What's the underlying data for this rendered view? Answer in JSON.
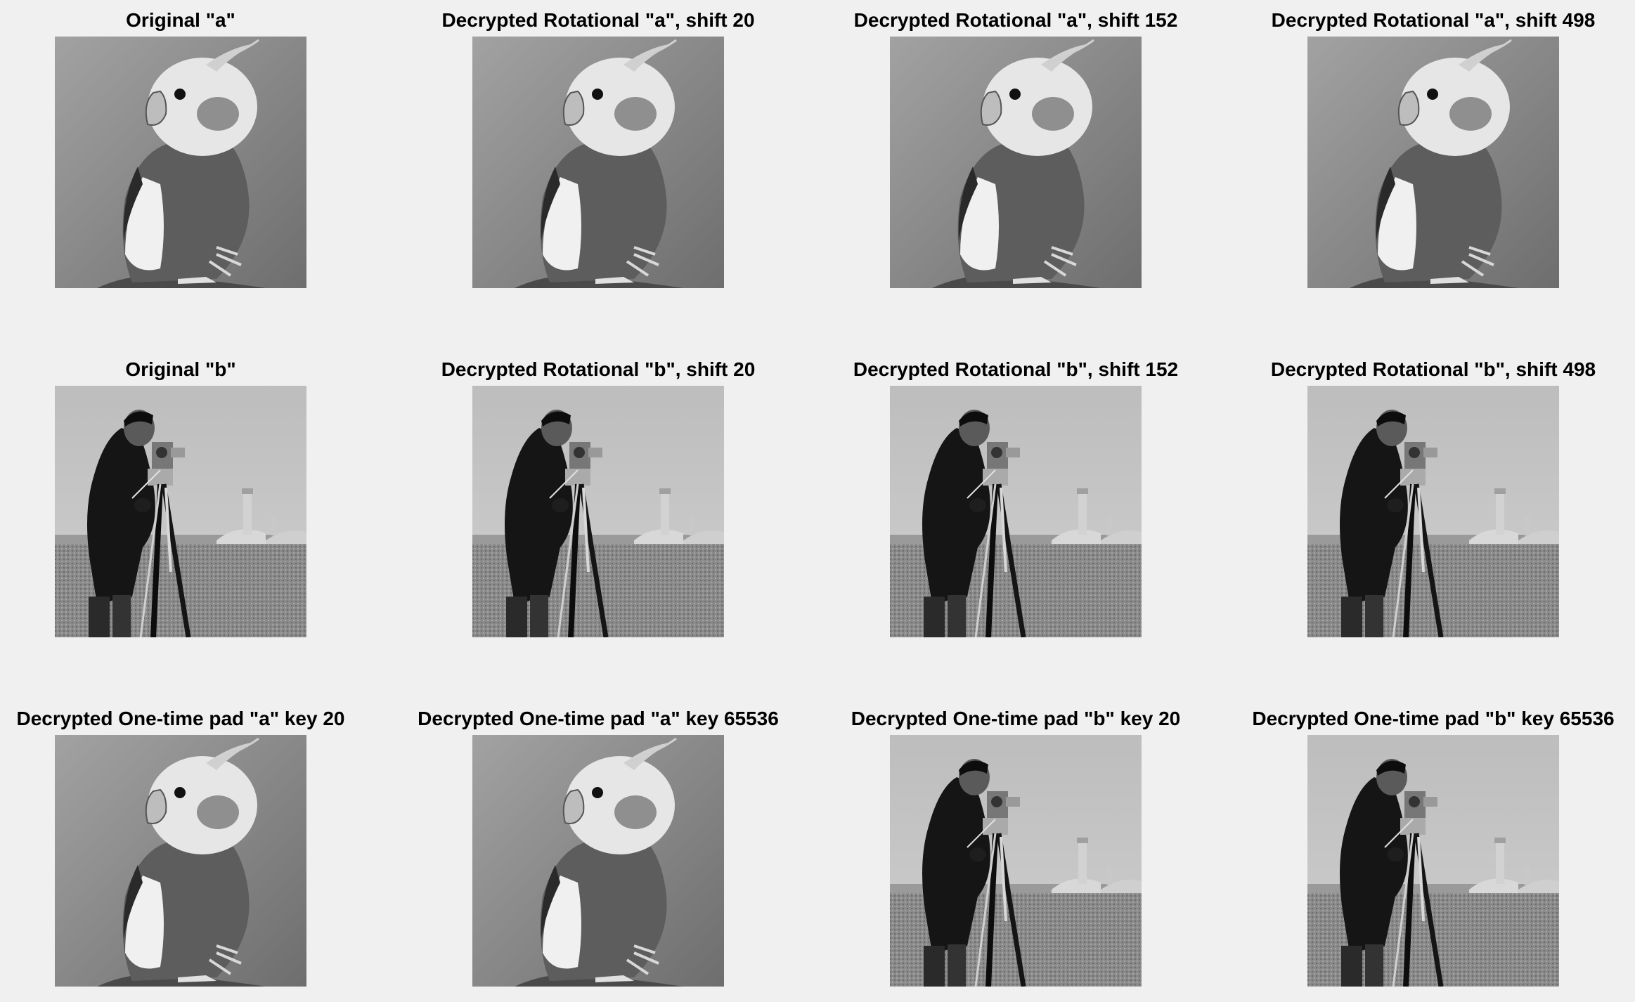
{
  "figure": {
    "panels": [
      {
        "title": "Original \"a\"",
        "image": "parrot"
      },
      {
        "title": "Decrypted Rotational \"a\", shift 20",
        "image": "parrot"
      },
      {
        "title": "Decrypted Rotational \"a\", shift 152",
        "image": "parrot"
      },
      {
        "title": "Decrypted Rotational \"a\", shift 498",
        "image": "parrot"
      },
      {
        "title": "Original \"b\"",
        "image": "cameraman"
      },
      {
        "title": "Decrypted Rotational \"b\", shift 20",
        "image": "cameraman"
      },
      {
        "title": "Decrypted Rotational \"b\", shift 152",
        "image": "cameraman"
      },
      {
        "title": "Decrypted Rotational \"b\", shift 498",
        "image": "cameraman"
      },
      {
        "title": "Decrypted One-time pad \"a\" key 20",
        "image": "parrot"
      },
      {
        "title": "Decrypted One-time pad \"a\" key 65536",
        "image": "parrot"
      },
      {
        "title": "Decrypted One-time pad \"b\" key 20",
        "image": "cameraman"
      },
      {
        "title": "Decrypted One-time pad \"b\" key 65536",
        "image": "cameraman"
      }
    ]
  },
  "icons": {
    "parrot": "parrot-photo",
    "cameraman": "cameraman-photo"
  },
  "colors": {
    "background": "#f0f0f0",
    "title": "#000000"
  }
}
